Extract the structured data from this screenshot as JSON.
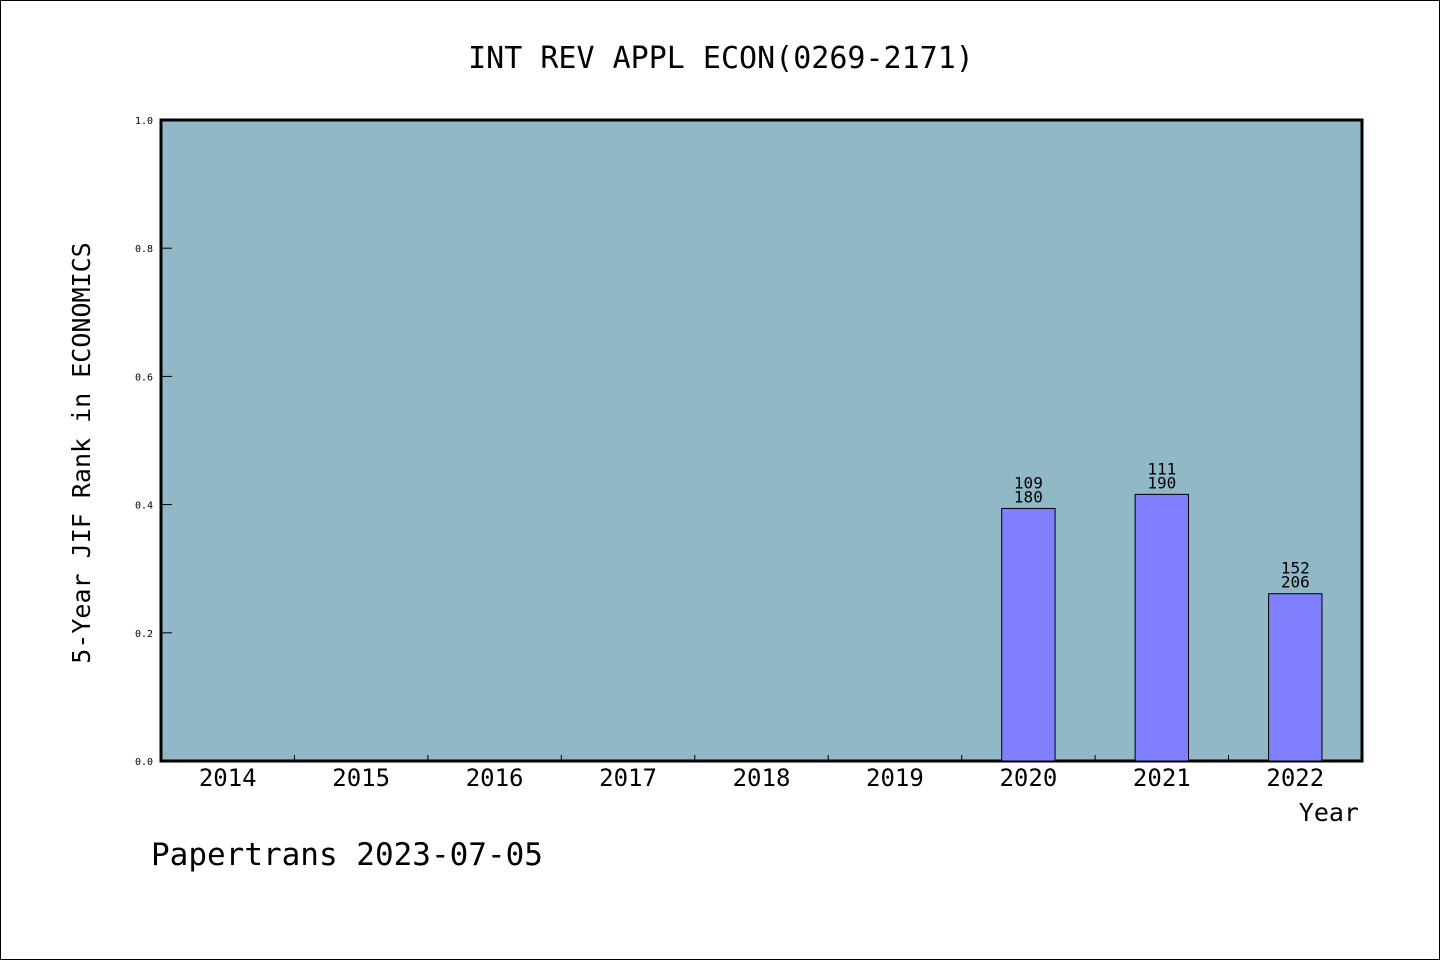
{
  "chart_data": {
    "type": "bar",
    "title": "INT REV APPL ECON(0269-2171)",
    "xlabel": "Year",
    "ylabel": "5-Year JIF Rank in ECONOMICS",
    "categories": [
      "2014",
      "2015",
      "2016",
      "2017",
      "2018",
      "2019",
      "2020",
      "2021",
      "2022"
    ],
    "values": [
      null,
      null,
      null,
      null,
      null,
      null,
      0.394,
      0.416,
      0.261
    ],
    "bar_labels_top": [
      "",
      "",
      "",
      "",
      "",
      "",
      "109",
      "111",
      "152"
    ],
    "bar_labels_bottom": [
      "",
      "",
      "",
      "",
      "",
      "",
      "180",
      "190",
      "206"
    ],
    "ylim": [
      0,
      1.0
    ],
    "yticks": [
      "0.0",
      "0.2",
      "0.4",
      "0.6",
      "0.8",
      "1.0"
    ],
    "grid": false,
    "colors": {
      "plot_background": "#90b8c6",
      "bar_fill": "#8080ff",
      "bar_stroke": "#000000"
    }
  },
  "footer": "Papertrans 2023-07-05"
}
